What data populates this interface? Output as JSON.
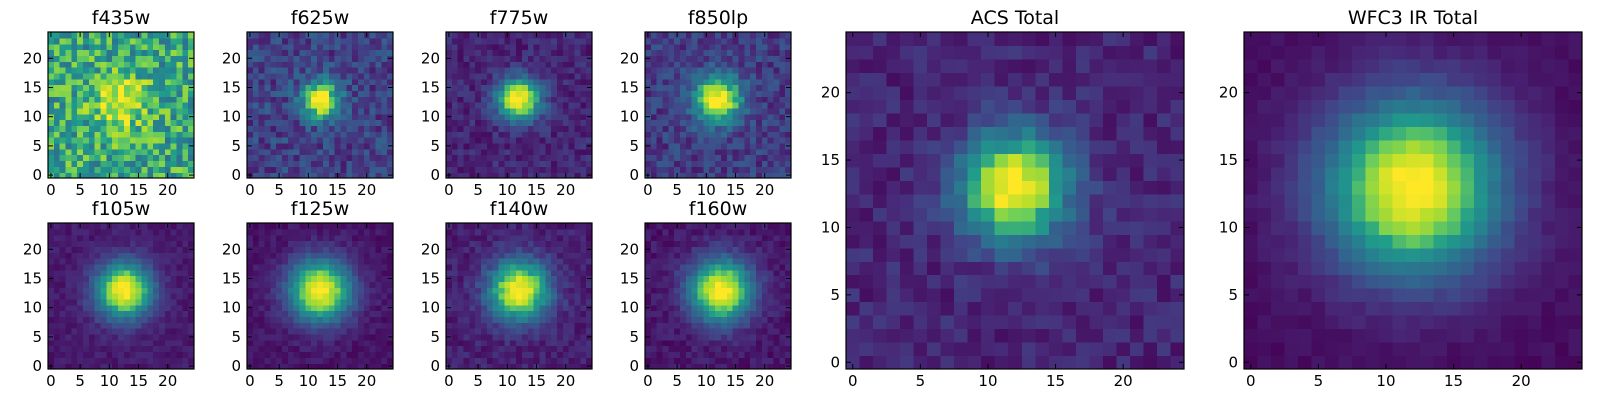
{
  "chart_data": {
    "type": "heatmap",
    "colormap": [
      "#440154",
      "#482777",
      "#3f4a8a",
      "#31678e",
      "#26838f",
      "#1f9d8a",
      "#6cce5a",
      "#b6de2b",
      "#fee825"
    ],
    "panels": [
      {
        "title": "f435w",
        "xlim": [
          0,
          24
        ],
        "ylim": [
          0,
          24
        ],
        "xticks": [
          0,
          5,
          10,
          15,
          20
        ],
        "yticks": [
          0,
          5,
          10,
          15,
          20
        ],
        "center": [
          12,
          12.5
        ],
        "sigma": 3.2,
        "background": 0.62,
        "amplitude": 0.38,
        "noise": 0.42
      },
      {
        "title": "f625w",
        "xlim": [
          0,
          24
        ],
        "ylim": [
          0,
          24
        ],
        "xticks": [
          0,
          5,
          10,
          15,
          20
        ],
        "yticks": [
          0,
          5,
          10,
          15,
          20
        ],
        "center": [
          12,
          13
        ],
        "sigma": 2.2,
        "background": 0.22,
        "amplitude": 0.85,
        "noise": 0.28
      },
      {
        "title": "f775w",
        "xlim": [
          0,
          24
        ],
        "ylim": [
          0,
          24
        ],
        "xticks": [
          0,
          5,
          10,
          15,
          20
        ],
        "yticks": [
          0,
          5,
          10,
          15,
          20
        ],
        "center": [
          12,
          13
        ],
        "sigma": 2.6,
        "background": 0.12,
        "amplitude": 0.9,
        "noise": 0.18
      },
      {
        "title": "f850lp",
        "xlim": [
          0,
          24
        ],
        "ylim": [
          0,
          24
        ],
        "xticks": [
          0,
          5,
          10,
          15,
          20
        ],
        "yticks": [
          0,
          5,
          10,
          15,
          20
        ],
        "center": [
          12,
          13
        ],
        "sigma": 2.8,
        "background": 0.2,
        "amplitude": 0.85,
        "noise": 0.24
      },
      {
        "title": "f105w",
        "xlim": [
          0,
          24
        ],
        "ylim": [
          0,
          24
        ],
        "xticks": [
          0,
          5,
          10,
          15,
          20
        ],
        "yticks": [
          0,
          5,
          10,
          15,
          20
        ],
        "center": [
          12.5,
          13
        ],
        "sigma": 3.4,
        "background": 0.08,
        "amplitude": 0.95,
        "noise": 0.1
      },
      {
        "title": "f125w",
        "xlim": [
          0,
          24
        ],
        "ylim": [
          0,
          24
        ],
        "xticks": [
          0,
          5,
          10,
          15,
          20
        ],
        "yticks": [
          0,
          5,
          10,
          15,
          20
        ],
        "center": [
          12,
          13
        ],
        "sigma": 3.8,
        "background": 0.06,
        "amplitude": 0.95,
        "noise": 0.1
      },
      {
        "title": "f140w",
        "xlim": [
          0,
          24
        ],
        "ylim": [
          0,
          24
        ],
        "xticks": [
          0,
          5,
          10,
          15,
          20
        ],
        "yticks": [
          0,
          5,
          10,
          15,
          20
        ],
        "center": [
          12,
          13
        ],
        "sigma": 3.6,
        "background": 0.1,
        "amplitude": 0.92,
        "noise": 0.14
      },
      {
        "title": "f160w",
        "xlim": [
          0,
          24
        ],
        "ylim": [
          0,
          24
        ],
        "xticks": [
          0,
          5,
          10,
          15,
          20
        ],
        "yticks": [
          0,
          5,
          10,
          15,
          20
        ],
        "center": [
          12.5,
          13
        ],
        "sigma": 3.8,
        "background": 0.07,
        "amplitude": 0.95,
        "noise": 0.12
      },
      {
        "title": "ACS Total",
        "xlim": [
          0,
          24
        ],
        "ylim": [
          0,
          24
        ],
        "xticks": [
          0,
          5,
          10,
          15,
          20
        ],
        "yticks": [
          0,
          5,
          10,
          15,
          20
        ],
        "center": [
          12,
          13
        ],
        "sigma": 2.8,
        "background": 0.12,
        "amplitude": 0.92,
        "noise": 0.16
      },
      {
        "title": "WFC3 IR Total",
        "xlim": [
          0,
          24
        ],
        "ylim": [
          0,
          24
        ],
        "xticks": [
          0,
          5,
          10,
          15,
          20
        ],
        "yticks": [
          0,
          5,
          10,
          15,
          20
        ],
        "center": [
          12,
          13
        ],
        "sigma": 4.6,
        "background": 0.04,
        "amplitude": 0.98,
        "noise": 0.06
      }
    ]
  }
}
